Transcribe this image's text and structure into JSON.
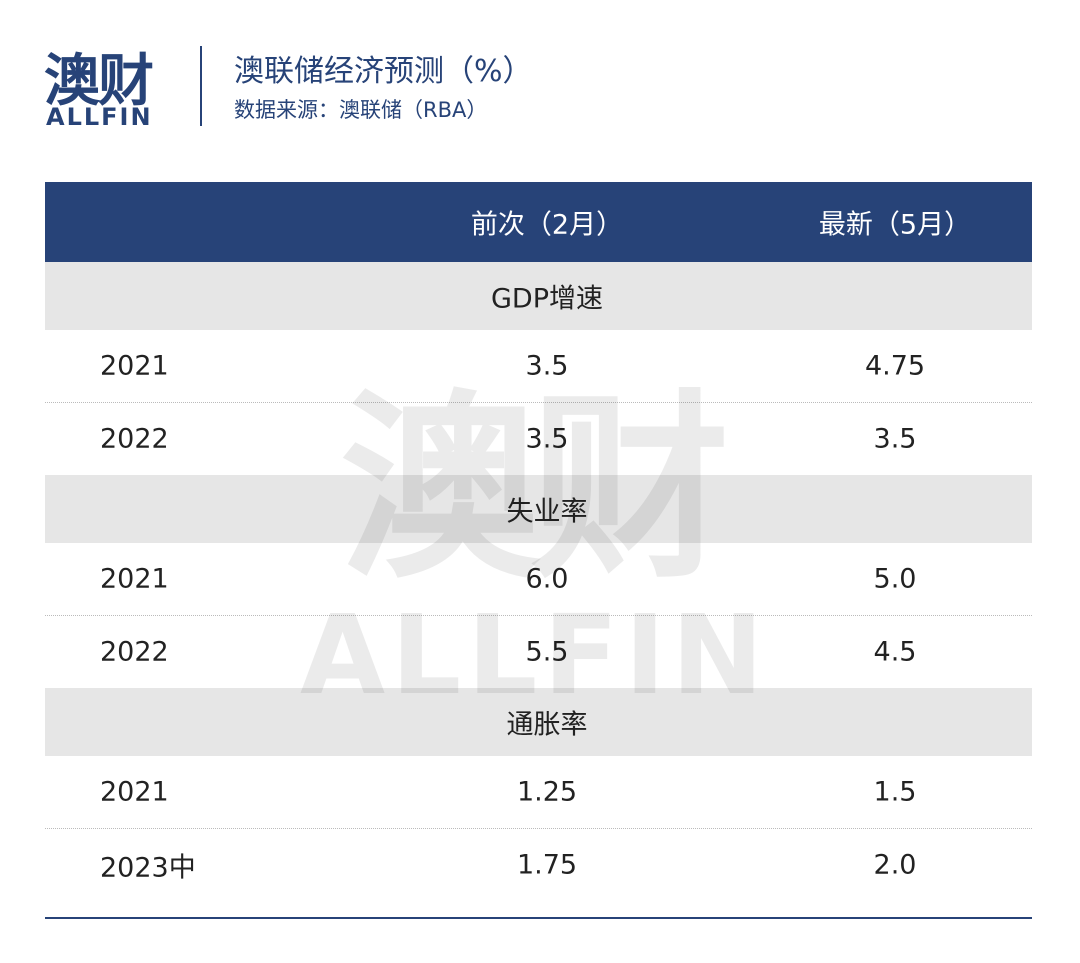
{
  "header": {
    "logo": {
      "name": "澳财",
      "latin": "ALLFIN"
    },
    "title": "澳联储经济预测（%）",
    "subtitle": "数据来源：澳联储（RBA）"
  },
  "table": {
    "columns": [
      "",
      "前次（2月）",
      "最新（5月）"
    ],
    "sections": [
      {
        "title": "GDP增速",
        "rows": [
          [
            "2021",
            "3.5",
            "4.75"
          ],
          [
            "2022",
            "3.5",
            "3.5"
          ]
        ]
      },
      {
        "title": "失业率",
        "rows": [
          [
            "2021",
            "6.0",
            "5.0"
          ],
          [
            "2022",
            "5.5",
            "4.5"
          ]
        ]
      },
      {
        "title": "通胀率",
        "rows": [
          [
            "2021",
            "1.25",
            "1.5"
          ],
          [
            "2023中",
            "1.75",
            "2.0"
          ]
        ]
      }
    ]
  }
}
